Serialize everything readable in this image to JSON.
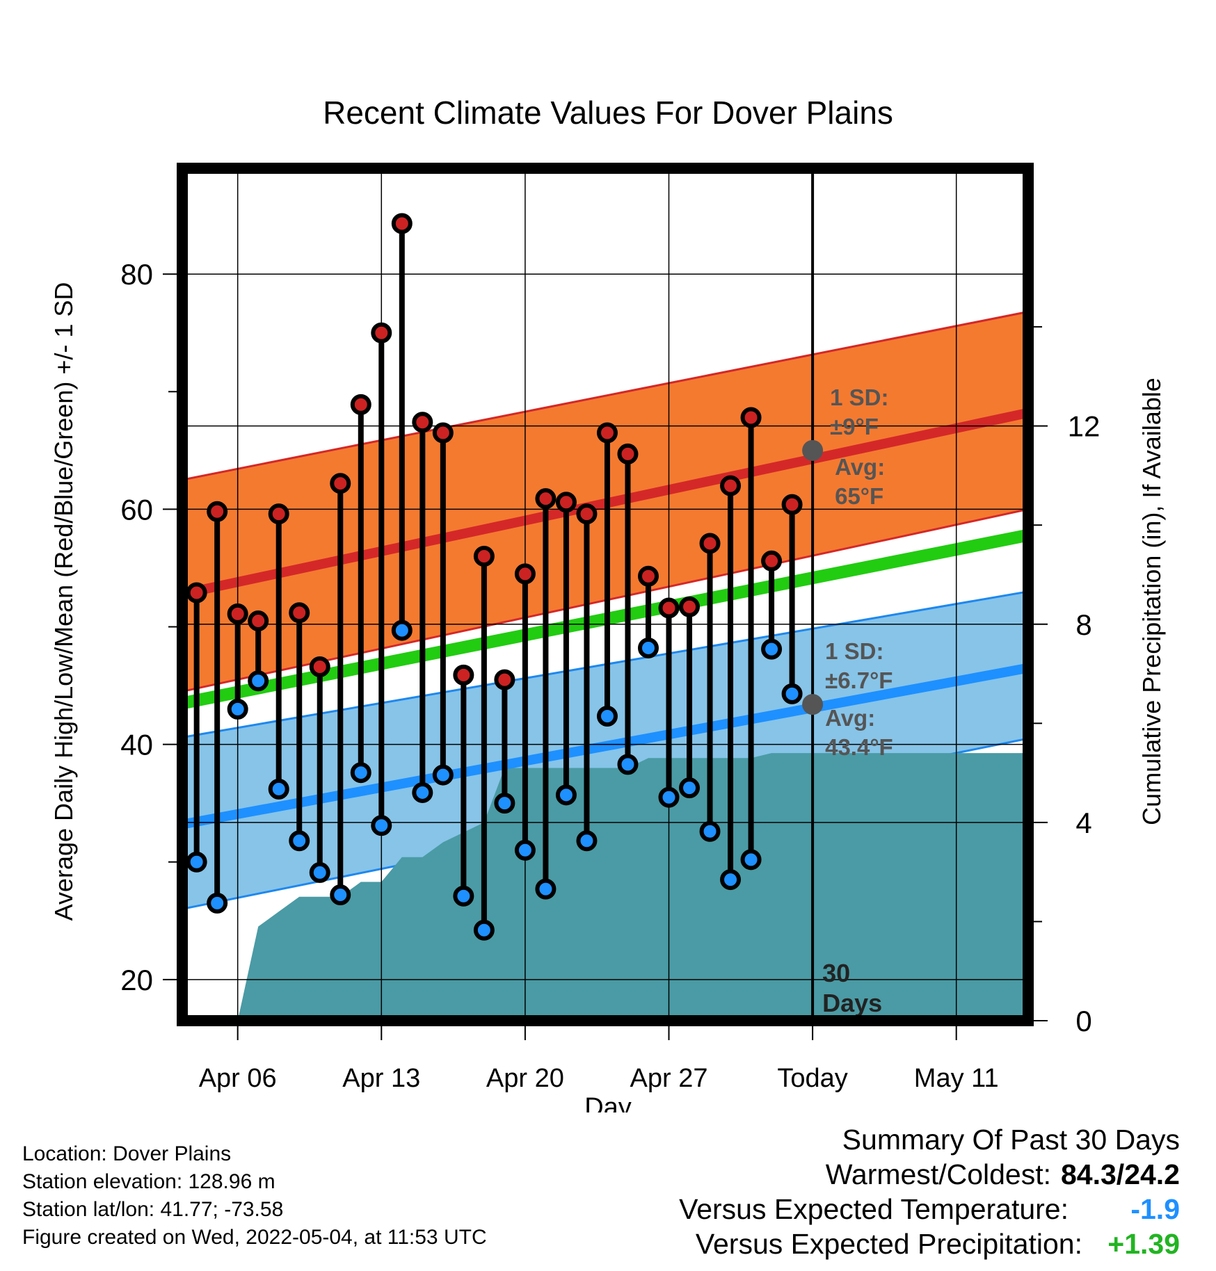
{
  "chart_data": {
    "type": "line",
    "title": "Recent Climate Values For Dover Plains",
    "xlabel": "Day",
    "ylabel": "Average Daily High/Low/Mean (Red/Blue/Green) +/- 1 SD",
    "y2label": "Cumulative Precipitation (in), If Available",
    "x_ticks": [
      {
        "label": "Apr 06",
        "day": 3
      },
      {
        "label": "Apr 13",
        "day": 10
      },
      {
        "label": "Apr 20",
        "day": 17
      },
      {
        "label": "Apr 27",
        "day": 24
      },
      {
        "label": "Today",
        "day": 31
      },
      {
        "label": "May 11",
        "day": 38
      }
    ],
    "xlim": [
      0.3,
      41.5
    ],
    "ylim": [
      16.5,
      89
    ],
    "y_ticks": [
      20,
      40,
      60,
      80
    ],
    "y2lim": [
      0,
      17.2
    ],
    "y2_ticks": [
      0,
      4,
      8,
      12
    ],
    "grid": true,
    "today_day": 31,
    "today_label": [
      "30",
      "Days"
    ],
    "normals": {
      "high_mean": {
        "start": 52.8,
        "end": 68.2,
        "color": "#d42828"
      },
      "high_band": {
        "lower_start": 44.5,
        "lower_end": 60.0,
        "upper_start": 62.5,
        "upper_end": 76.8,
        "color": "#f47a30"
      },
      "mean_line": {
        "start": 43.5,
        "end": 57.8,
        "color": "#22cc11"
      },
      "low_mean": {
        "start": 33.2,
        "end": 46.5,
        "color": "#1e90ff"
      },
      "low_band": {
        "lower_start": 26.0,
        "lower_end": 40.5,
        "upper_start": 40.6,
        "upper_end": 53.0,
        "color": "#87c4e8"
      }
    },
    "annotations": {
      "high": {
        "sd_label": "1 SD:",
        "sd_value": "±9°F",
        "avg_label": "Avg:",
        "avg_value": "65°F",
        "avg": 65
      },
      "low": {
        "sd_label": "1 SD:",
        "sd_value": "±6.7°F",
        "avg_label": "Avg:",
        "avg_value": "43.4°F",
        "avg": 43.4
      }
    },
    "daily": [
      {
        "day": 1,
        "high": 52.9,
        "low": 30.0
      },
      {
        "day": 2,
        "high": 59.8,
        "low": 26.5
      },
      {
        "day": 3,
        "high": 51.1,
        "low": 43.0
      },
      {
        "day": 4,
        "high": 50.5,
        "low": 45.4
      },
      {
        "day": 5,
        "high": 59.6,
        "low": 36.2
      },
      {
        "day": 6,
        "high": 51.2,
        "low": 31.8
      },
      {
        "day": 7,
        "high": 46.6,
        "low": 29.1
      },
      {
        "day": 8,
        "high": 62.2,
        "low": 27.2
      },
      {
        "day": 9,
        "high": 68.9,
        "low": 37.6
      },
      {
        "day": 10,
        "high": 75.0,
        "low": 33.1
      },
      {
        "day": 11,
        "high": 84.3,
        "low": 49.7
      },
      {
        "day": 12,
        "high": 67.4,
        "low": 35.9
      },
      {
        "day": 13,
        "high": 66.5,
        "low": 37.4
      },
      {
        "day": 14,
        "high": 45.9,
        "low": 27.1
      },
      {
        "day": 15,
        "high": 56.0,
        "low": 24.2
      },
      {
        "day": 16,
        "high": 45.5,
        "low": 35.0
      },
      {
        "day": 17,
        "high": 54.5,
        "low": 31.0
      },
      {
        "day": 18,
        "high": 60.9,
        "low": 27.7
      },
      {
        "day": 19,
        "high": 60.6,
        "low": 35.7
      },
      {
        "day": 20,
        "high": 59.6,
        "low": 31.8
      },
      {
        "day": 21,
        "high": 66.5,
        "low": 42.4
      },
      {
        "day": 22,
        "high": 64.7,
        "low": 38.3
      },
      {
        "day": 23,
        "high": 54.3,
        "low": 48.2
      },
      {
        "day": 24,
        "high": 51.6,
        "low": 35.5
      },
      {
        "day": 25,
        "high": 51.7,
        "low": 36.3
      },
      {
        "day": 26,
        "high": 57.1,
        "low": 32.6
      },
      {
        "day": 27,
        "high": 62.0,
        "low": 28.5
      },
      {
        "day": 28,
        "high": 67.8,
        "low": 30.2
      },
      {
        "day": 29,
        "high": 55.6,
        "low": 48.1
      },
      {
        "day": 30,
        "high": 60.4,
        "low": 44.3
      }
    ],
    "precip": {
      "color": "#4a9ba5",
      "points": [
        {
          "day": 3.0,
          "inches": 0
        },
        {
          "day": 4.0,
          "inches": 1.9
        },
        {
          "day": 5.0,
          "inches": 2.2
        },
        {
          "day": 6.0,
          "inches": 2.5
        },
        {
          "day": 8.0,
          "inches": 2.5
        },
        {
          "day": 9.0,
          "inches": 2.8
        },
        {
          "day": 10.0,
          "inches": 2.8
        },
        {
          "day": 11.0,
          "inches": 3.3
        },
        {
          "day": 12.0,
          "inches": 3.3
        },
        {
          "day": 13.0,
          "inches": 3.6
        },
        {
          "day": 14.0,
          "inches": 3.8
        },
        {
          "day": 15.0,
          "inches": 4.0
        },
        {
          "day": 16.0,
          "inches": 5.1
        },
        {
          "day": 22.0,
          "inches": 5.1
        },
        {
          "day": 23.0,
          "inches": 5.3
        },
        {
          "day": 28.0,
          "inches": 5.3
        },
        {
          "day": 29.0,
          "inches": 5.4
        },
        {
          "day": 41.5,
          "inches": 5.4
        }
      ]
    }
  },
  "footer": {
    "location": "Location: Dover Plains",
    "elevation": "Station elevation: 128.96 m",
    "latlon": "Station lat/lon: 41.77; -73.58",
    "created": "Figure created on Wed, 2022-05-04, at 11:53 UTC"
  },
  "summary": {
    "heading": "Summary Of Past 30 Days",
    "warmest_label": "Warmest/Coldest:",
    "warmest_value": "84.3/24.2",
    "temp_label": "Versus Expected Temperature:",
    "temp_value": "-1.9",
    "temp_color": "#1e90ff",
    "precip_label": "Versus Expected Precipitation:",
    "precip_value": "+1.39",
    "precip_color": "#22b422"
  }
}
